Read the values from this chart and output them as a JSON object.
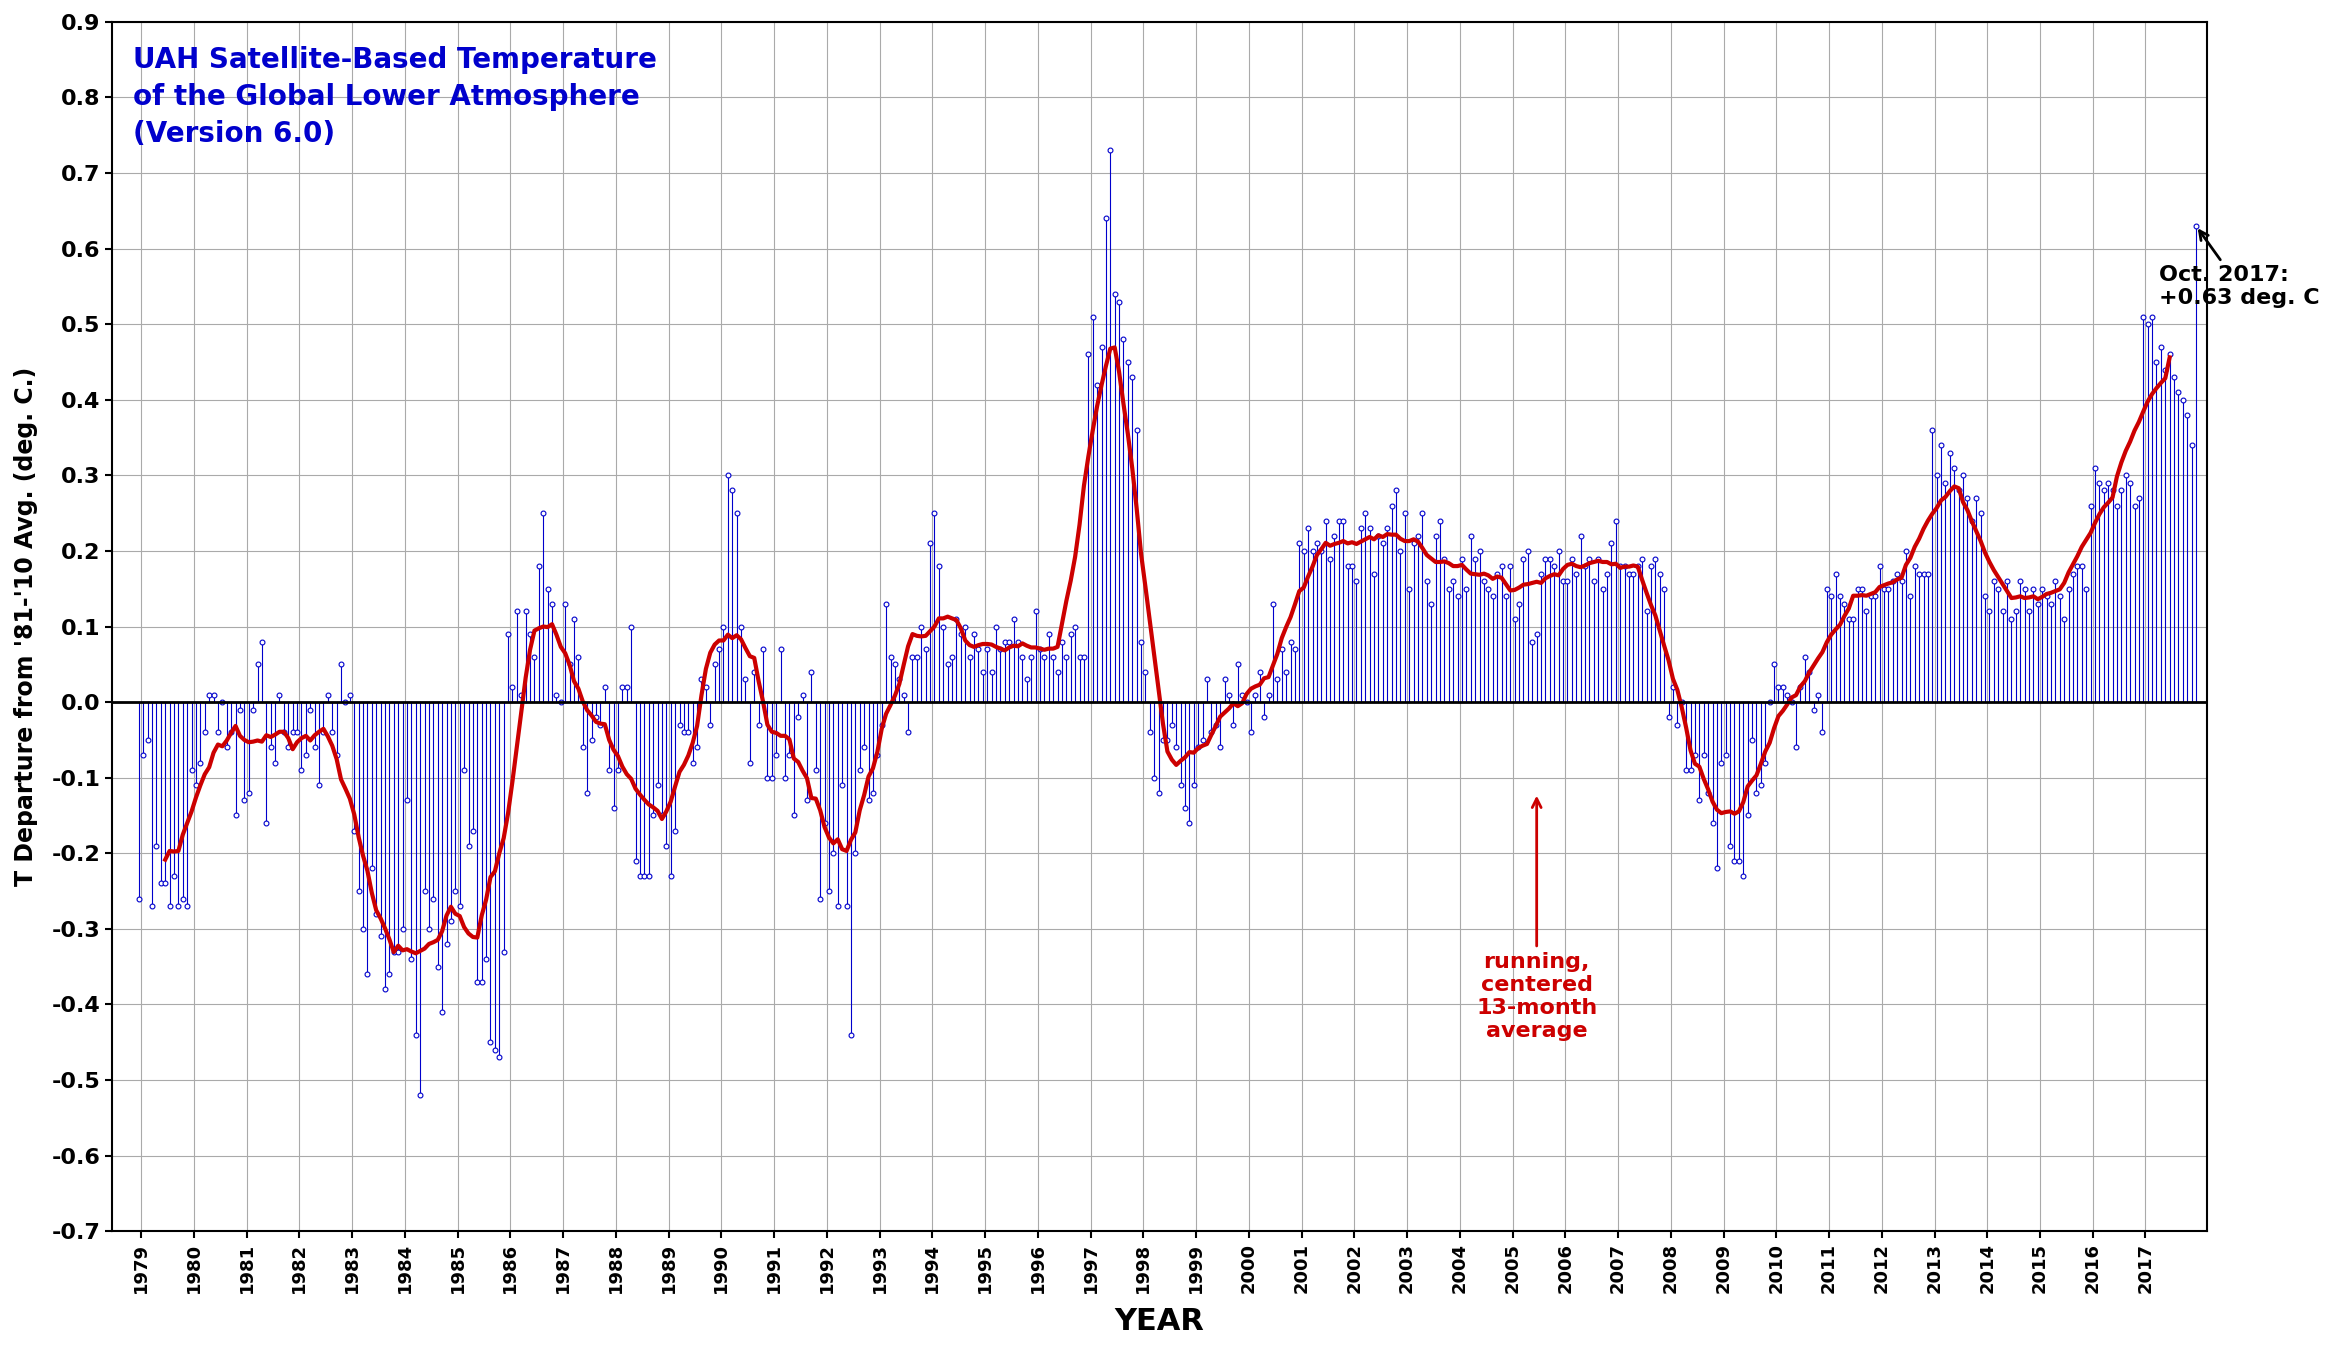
{
  "title": "UAH Satellite-Based Temperature\nof the Global Lower Atmosphere\n(Version 6.0)",
  "xlabel": "YEAR",
  "ylabel": "T Departure from '81-'10 Avg. (deg. C.)",
  "ylim": [
    -0.7,
    0.9
  ],
  "xlim": [
    1978.5,
    2018.2
  ],
  "annotation_text": "Oct. 2017:\n+0.63 deg. C",
  "running_avg_label": "running,\ncentered\n13-month\naverage",
  "title_color": "#0000CC",
  "data_color": "#0000CC",
  "running_avg_color": "#CC0000",
  "annotation_color": "#000000",
  "background_color": "#FFFFFF",
  "grid_color": "#AAAAAA",
  "monthly_data": [
    -0.26,
    -0.07,
    -0.05,
    -0.27,
    -0.19,
    -0.24,
    -0.24,
    -0.27,
    -0.23,
    -0.27,
    -0.26,
    -0.27,
    -0.09,
    -0.11,
    -0.08,
    -0.04,
    0.01,
    0.01,
    -0.04,
    0.0,
    -0.06,
    -0.04,
    -0.15,
    -0.01,
    -0.13,
    -0.12,
    -0.01,
    0.05,
    0.08,
    -0.16,
    -0.06,
    -0.08,
    0.01,
    -0.04,
    -0.06,
    -0.04,
    -0.04,
    -0.09,
    -0.07,
    -0.01,
    -0.06,
    -0.11,
    -0.04,
    0.01,
    -0.04,
    -0.07,
    0.05,
    0.0,
    0.01,
    -0.17,
    -0.25,
    -0.3,
    -0.36,
    -0.22,
    -0.28,
    -0.31,
    -0.38,
    -0.36,
    -0.33,
    -0.33,
    -0.3,
    -0.13,
    -0.34,
    -0.44,
    -0.52,
    -0.25,
    -0.3,
    -0.26,
    -0.35,
    -0.41,
    -0.32,
    -0.29,
    -0.25,
    -0.27,
    -0.09,
    -0.19,
    -0.17,
    -0.37,
    -0.37,
    -0.34,
    -0.45,
    -0.46,
    -0.47,
    -0.33,
    0.09,
    0.02,
    0.12,
    0.01,
    0.12,
    0.09,
    0.06,
    0.18,
    0.25,
    0.15,
    0.13,
    0.01,
    0.0,
    0.13,
    0.05,
    0.11,
    0.06,
    -0.06,
    -0.12,
    -0.05,
    -0.02,
    -0.03,
    0.02,
    -0.09,
    -0.14,
    -0.09,
    0.02,
    0.02,
    0.1,
    -0.21,
    -0.23,
    -0.23,
    -0.23,
    -0.15,
    -0.11,
    -0.15,
    -0.19,
    -0.23,
    -0.17,
    -0.03,
    -0.04,
    -0.04,
    -0.08,
    -0.06,
    0.03,
    0.02,
    -0.03,
    0.05,
    0.07,
    0.1,
    0.3,
    0.28,
    0.25,
    0.1,
    0.03,
    -0.08,
    0.04,
    -0.03,
    0.07,
    -0.1,
    -0.1,
    -0.07,
    0.07,
    -0.1,
    -0.07,
    -0.15,
    -0.02,
    0.01,
    -0.13,
    0.04,
    -0.09,
    -0.26,
    -0.16,
    -0.25,
    -0.2,
    -0.27,
    -0.11,
    -0.27,
    -0.44,
    -0.2,
    -0.09,
    -0.06,
    -0.13,
    -0.12,
    -0.07,
    -0.03,
    0.13,
    0.06,
    0.05,
    0.03,
    0.01,
    -0.04,
    0.06,
    0.06,
    0.1,
    0.07,
    0.21,
    0.25,
    0.18,
    0.1,
    0.05,
    0.06,
    0.11,
    0.09,
    0.1,
    0.06,
    0.09,
    0.07,
    0.04,
    0.07,
    0.04,
    0.1,
    0.07,
    0.08,
    0.08,
    0.11,
    0.08,
    0.06,
    0.03,
    0.06,
    0.12,
    0.07,
    0.06,
    0.09,
    0.06,
    0.04,
    0.08,
    0.06,
    0.09,
    0.1,
    0.06,
    0.06,
    0.46,
    0.51,
    0.42,
    0.47,
    0.64,
    0.73,
    0.54,
    0.53,
    0.48,
    0.45,
    0.43,
    0.36,
    0.08,
    0.04,
    -0.04,
    -0.1,
    -0.12,
    -0.05,
    -0.05,
    -0.03,
    -0.06,
    -0.11,
    -0.14,
    -0.16,
    -0.11,
    -0.06,
    -0.05,
    0.03,
    -0.04,
    -0.03,
    -0.06,
    0.03,
    0.01,
    -0.03,
    0.05,
    0.01,
    0.0,
    -0.04,
    0.01,
    0.04,
    -0.02,
    0.01,
    0.13,
    0.03,
    0.07,
    0.04,
    0.08,
    0.07,
    0.21,
    0.2,
    0.23,
    0.2,
    0.21,
    0.2,
    0.24,
    0.19,
    0.22,
    0.24,
    0.24,
    0.18,
    0.18,
    0.16,
    0.23,
    0.25,
    0.23,
    0.17,
    0.22,
    0.21,
    0.23,
    0.26,
    0.28,
    0.2,
    0.25,
    0.15,
    0.21,
    0.22,
    0.25,
    0.16,
    0.13,
    0.22,
    0.24,
    0.19,
    0.15,
    0.16,
    0.14,
    0.19,
    0.15,
    0.22,
    0.19,
    0.2,
    0.16,
    0.15,
    0.14,
    0.17,
    0.18,
    0.14,
    0.18,
    0.11,
    0.13,
    0.19,
    0.2,
    0.08,
    0.09,
    0.17,
    0.19,
    0.19,
    0.18,
    0.2,
    0.16,
    0.16,
    0.19,
    0.17,
    0.22,
    0.18,
    0.19,
    0.16,
    0.19,
    0.15,
    0.17,
    0.21,
    0.24,
    0.18,
    0.18,
    0.17,
    0.17,
    0.18,
    0.19,
    0.12,
    0.18,
    0.19,
    0.17,
    0.15,
    -0.02,
    0.02,
    -0.03,
    0.0,
    -0.09,
    -0.09,
    -0.07,
    -0.13,
    -0.07,
    -0.12,
    -0.16,
    -0.22,
    -0.08,
    -0.07,
    -0.19,
    -0.21,
    -0.21,
    -0.23,
    -0.15,
    -0.05,
    -0.12,
    -0.11,
    -0.08,
    -0.0,
    0.05,
    0.02,
    0.02,
    0.01,
    0.0,
    -0.06,
    0.02,
    0.06,
    0.04,
    -0.01,
    0.01,
    -0.04,
    0.15,
    0.14,
    0.17,
    0.14,
    0.13,
    0.11,
    0.11,
    0.15,
    0.15,
    0.12,
    0.14,
    0.14,
    0.18,
    0.15,
    0.15,
    0.16,
    0.17,
    0.16,
    0.2,
    0.14,
    0.18,
    0.17,
    0.17,
    0.17,
    0.36,
    0.3,
    0.34,
    0.29,
    0.33,
    0.31,
    0.28,
    0.3,
    0.27,
    0.24,
    0.27,
    0.25,
    0.14,
    0.12,
    0.16,
    0.15,
    0.12,
    0.16,
    0.11,
    0.12,
    0.16,
    0.15,
    0.12,
    0.15,
    0.13,
    0.15,
    0.14,
    0.13,
    0.16,
    0.14,
    0.11,
    0.15,
    0.17,
    0.18,
    0.18,
    0.15,
    0.26,
    0.31,
    0.29,
    0.28,
    0.29,
    0.28,
    0.26,
    0.28,
    0.3,
    0.29,
    0.26,
    0.27,
    0.51,
    0.5,
    0.51,
    0.45,
    0.47,
    0.44,
    0.46,
    0.43,
    0.41,
    0.4,
    0.38,
    0.34,
    0.63
  ],
  "start_year": 1979,
  "start_month": 1
}
